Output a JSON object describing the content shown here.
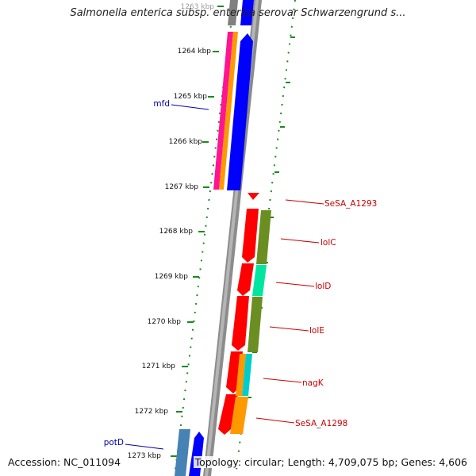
{
  "title": "Salmonella enterica subsp. enterica serovar Schwarzengrund s...",
  "ticks": [
    "1263 kbp",
    "1264 kbp",
    "1265 kbp",
    "1266 kbp",
    "1267 kbp",
    "1268 kbp",
    "1269 kbp",
    "1270 kbp",
    "1271 kbp",
    "1272 kbp",
    "1273 kbp"
  ],
  "genes": {
    "forward": [
      {
        "label": "SeSA_A1293",
        "color": "#cc0000"
      },
      {
        "label": "lolC",
        "color": "#cc0000"
      },
      {
        "label": "lolD",
        "color": "#cc0000"
      },
      {
        "label": "lolE",
        "color": "#cc0000"
      },
      {
        "label": "nagK",
        "color": "#cc0000"
      },
      {
        "label": "SeSA_A1298",
        "color": "#cc0000"
      }
    ],
    "reverse": [
      {
        "label": "mfd",
        "color": "#0000aa"
      },
      {
        "label": "potD",
        "color": "#0000aa"
      }
    ]
  },
  "footer": {
    "accession": "Accession: NC_011094",
    "topology": "Topology: circular; Length: 4,709,075 bp; Genes: 4,606"
  },
  "colors": {
    "backbone": "#8c8c8c",
    "tick": "#1a8a1a",
    "cds": "#ff0000",
    "cog_blue": "#0000ff",
    "cog_pink": "#ff1493",
    "cog_orange": "#ff9900",
    "cog_olive": "#6b8e23",
    "cog_aqua": "#00e5a0",
    "cog_cyan": "#00cccc",
    "cog_steel": "#4682b4"
  }
}
